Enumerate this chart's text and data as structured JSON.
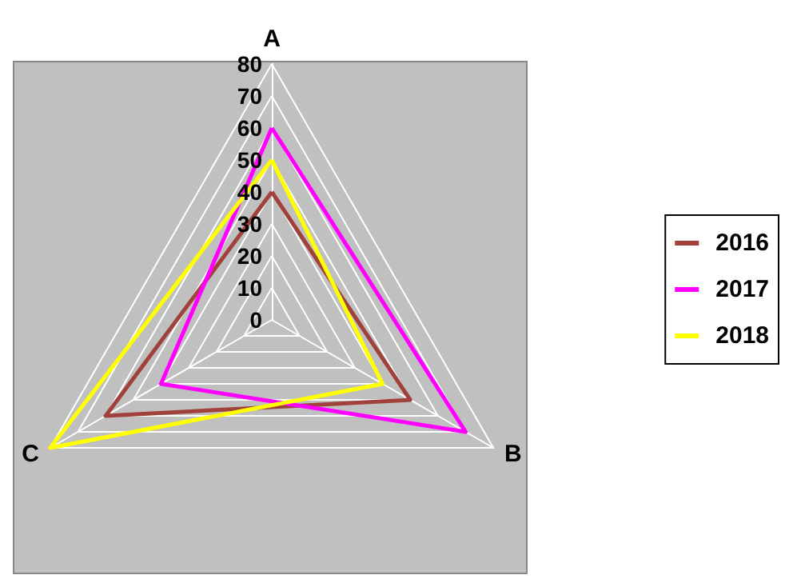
{
  "chart_data": {
    "type": "radar",
    "categories": [
      "A",
      "B",
      "C"
    ],
    "series": [
      {
        "name": "2016",
        "color": "#a0413c",
        "values": [
          40,
          50,
          60
        ]
      },
      {
        "name": "2017",
        "color": "#ff00ff",
        "values": [
          60,
          70,
          40
        ]
      },
      {
        "name": "2018",
        "color": "#ffff00",
        "values": [
          50,
          40,
          80
        ]
      }
    ],
    "ylim": [
      0,
      80
    ],
    "yticks": [
      0,
      10,
      20,
      30,
      40,
      50,
      60,
      70,
      80
    ],
    "grid": true,
    "legend": "right",
    "marker": "none"
  }
}
